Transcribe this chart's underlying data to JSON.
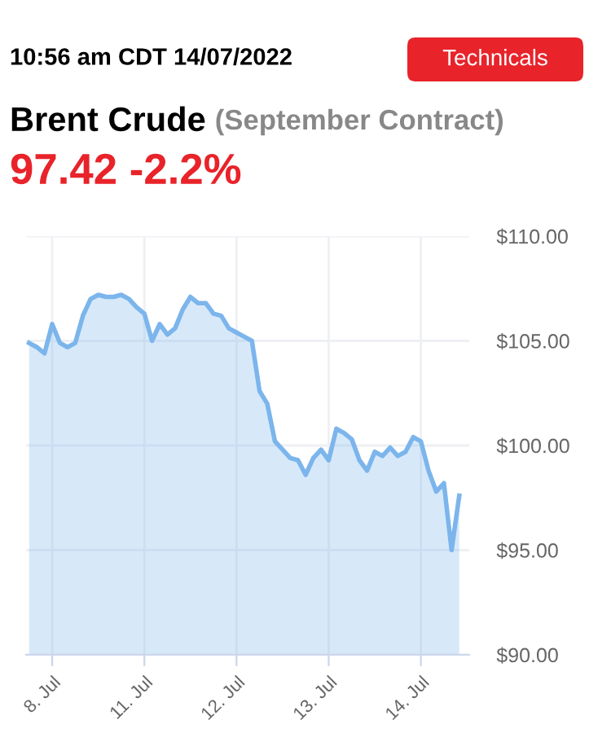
{
  "chart_data": {
    "type": "area",
    "title": "Brent Crude",
    "subtitle": "(September Contract)",
    "annotations": [
      "10:56 am CDT 14/07/2022",
      "97.42 -2.2%",
      "Technicals"
    ],
    "categories": [
      null,
      null,
      null,
      "8. Jul",
      null,
      null,
      null,
      null,
      null,
      null,
      null,
      null,
      null,
      null,
      null,
      "11. Jul",
      null,
      null,
      null,
      null,
      null,
      null,
      null,
      null,
      null,
      null,
      null,
      "12. Jul",
      null,
      null,
      null,
      null,
      null,
      null,
      null,
      null,
      null,
      null,
      null,
      "13. Jul",
      null,
      null,
      null,
      null,
      null,
      null,
      null,
      null,
      null,
      null,
      null,
      "14. Jul",
      null,
      null,
      null,
      null,
      null
    ],
    "series": [
      {
        "color": "#7cb5ec",
        "values": [
          104.9,
          104.7,
          104.4,
          105.8,
          104.9,
          104.7,
          104.9,
          106.2,
          107.0,
          107.2,
          107.1,
          107.1,
          107.2,
          107.0,
          106.6,
          106.3,
          105.0,
          105.8,
          105.3,
          105.6,
          106.5,
          107.1,
          106.8,
          106.8,
          106.3,
          106.2,
          105.6,
          105.4,
          105.2,
          105.0,
          102.6,
          102.0,
          100.2,
          99.8,
          99.4,
          99.3,
          98.6,
          99.4,
          99.8,
          99.3,
          100.8,
          100.6,
          100.3,
          99.3,
          98.8,
          99.7,
          99.5,
          99.9,
          99.5,
          99.7,
          100.4,
          100.2,
          98.8,
          97.8,
          98.2,
          95.0,
          97.6
        ]
      }
    ],
    "ylim": [
      90,
      110
    ],
    "yticks": [
      {
        "value": 90,
        "label": "$90.00"
      },
      {
        "value": 95,
        "label": "$95.00"
      },
      {
        "value": 100,
        "label": "$100.00"
      },
      {
        "value": 105,
        "label": "$105.00"
      },
      {
        "value": 110,
        "label": "$110.00"
      }
    ],
    "grid": true
  }
}
